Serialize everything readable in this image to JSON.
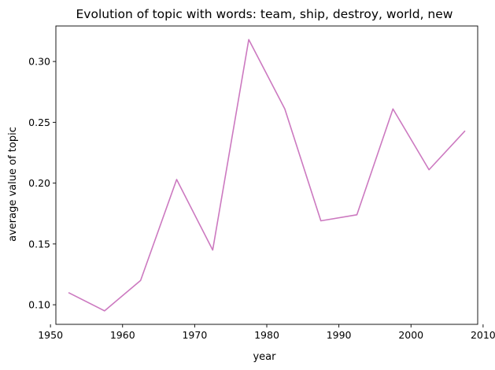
{
  "chart_data": {
    "type": "line",
    "title": "Evolution of topic with words: team, ship, destroy, world, new",
    "xlabel": "year",
    "ylabel": "average value of topic",
    "xlim": [
      1950.75,
      2009.25
    ],
    "ylim": [
      0.0839,
      0.3292
    ],
    "xticks": [
      1950,
      1960,
      1970,
      1980,
      1990,
      2000,
      2010
    ],
    "xtick_labels": [
      "1950",
      "1960",
      "1970",
      "1980",
      "1990",
      "2000",
      "2010"
    ],
    "yticks": [
      0.1,
      0.15,
      0.2,
      0.25,
      0.3
    ],
    "ytick_labels": [
      "0.10",
      "0.15",
      "0.20",
      "0.25",
      "0.30"
    ],
    "grid": false,
    "series": [
      {
        "color": "#cc79c0",
        "x": [
          1952.5,
          1957.5,
          1962.5,
          1967.5,
          1972.5,
          1977.5,
          1982.5,
          1987.5,
          1992.5,
          1997.5,
          2002.5,
          2007.5
        ],
        "values": [
          0.11,
          0.095,
          0.12,
          0.203,
          0.145,
          0.318,
          0.261,
          0.169,
          0.174,
          0.261,
          0.211,
          0.243
        ]
      }
    ]
  }
}
